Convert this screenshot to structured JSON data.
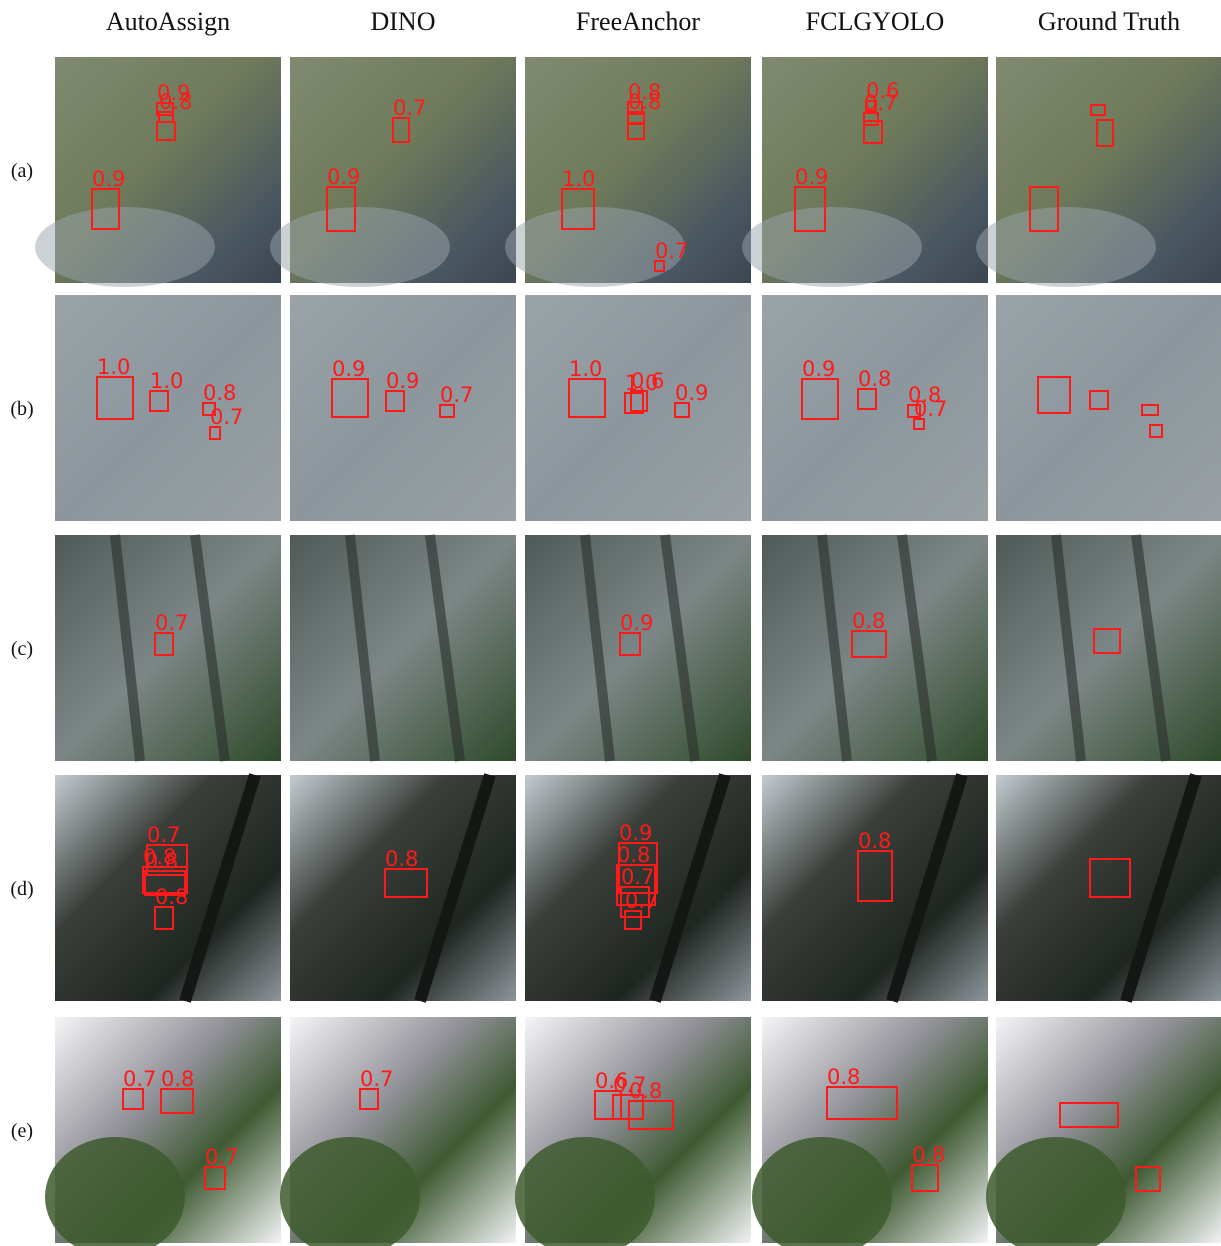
{
  "columns": [
    "AutoAssign",
    "DINO",
    "FreeAnchor",
    "FCLGYOLO",
    "Ground Truth"
  ],
  "rows": [
    {
      "label": "(a)",
      "scores": [
        [
          "0.9",
          "0.8",
          "0.9"
        ],
        [
          "0.7",
          "0.9"
        ],
        [
          "0.8",
          "0.8",
          "1.0",
          "0.7"
        ],
        [
          "0.6",
          "0.7",
          "0.9"
        ],
        []
      ]
    },
    {
      "label": "(b)",
      "scores": [
        [
          "1.0",
          "1.0",
          "0.8",
          "0.7"
        ],
        [
          "0.9",
          "0.9",
          "0.7"
        ],
        [
          "1.0",
          "1.0",
          "0.6",
          "0.9"
        ],
        [
          "0.9",
          "0.8",
          "0.8",
          "0.7"
        ],
        []
      ]
    },
    {
      "label": "(c)",
      "scores": [
        [
          "0.7"
        ],
        [],
        [
          "0.9"
        ],
        [
          "0.8"
        ],
        []
      ]
    },
    {
      "label": "(d)",
      "scores": [
        [
          "0.7",
          "0.8",
          "0.8",
          "0.8"
        ],
        [
          "0.8"
        ],
        [
          "0.9",
          "0.8",
          "0.7",
          "0.7"
        ],
        [
          "0.8"
        ],
        []
      ]
    },
    {
      "label": "(e)",
      "scores": [
        [
          "0.7",
          "0.8",
          "0.7"
        ],
        [
          "0.7"
        ],
        [
          "0.6",
          "0.7",
          "0.8"
        ],
        [
          "0.8",
          "0.8"
        ],
        []
      ]
    }
  ]
}
